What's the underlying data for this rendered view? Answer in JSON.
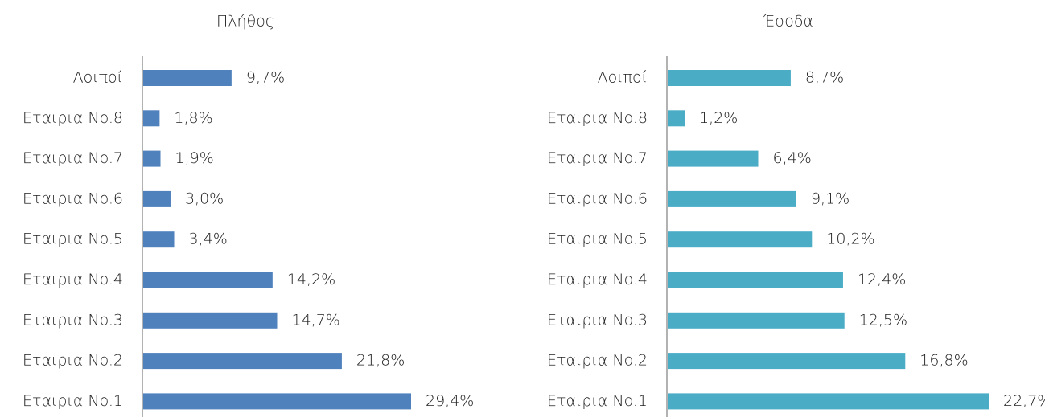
{
  "chart_data": [
    {
      "type": "barh",
      "title": "Πλήθος",
      "color": "#4f81bd",
      "categories": [
        "Λοιποί",
        "Εταιρια No.8",
        "Εταιρια No.7",
        "Εταιρια No.6",
        "Εταιρια No.5",
        "Εταιρια No.4",
        "Εταιρια No.3",
        "Εταιρια No.2",
        "Εταιρια No.1"
      ],
      "values": [
        9.7,
        1.8,
        1.9,
        3.0,
        3.4,
        14.2,
        14.7,
        21.8,
        29.4
      ],
      "value_labels": [
        "9,7%",
        "1,8%",
        "1,9%",
        "3,0%",
        "3,4%",
        "14,2%",
        "14,7%",
        "21,8%",
        "29,4%"
      ]
    },
    {
      "type": "barh",
      "title": "Έσοδα",
      "color": "#4bacc6",
      "categories": [
        "Λοιποί",
        "Εταιρια No.8",
        "Εταιρια No.7",
        "Εταιρια No.6",
        "Εταιρια No.5",
        "Εταιρια No.4",
        "Εταιρια No.3",
        "Εταιρια No.2",
        "Εταιρια No.1"
      ],
      "values": [
        8.7,
        1.2,
        6.4,
        9.1,
        10.2,
        12.4,
        12.5,
        16.8,
        22.7
      ],
      "value_labels": [
        "8,7%",
        "1,2%",
        "6,4%",
        "9,1%",
        "10,2%",
        "12,4%",
        "12,5%",
        "16,8%",
        "22,7%"
      ]
    }
  ]
}
